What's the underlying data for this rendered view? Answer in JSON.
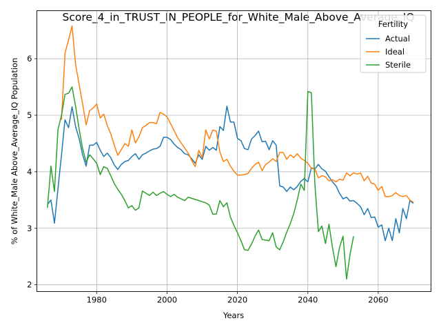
{
  "chart_data": {
    "type": "line",
    "title": "Score_4_in_TRUST_IN_PEOPLE_for_White_Male_Above_Average_IQ",
    "xlabel": "Years",
    "ylabel": "% of White_Male Above_Average_IQ Population",
    "xlim": [
      1963,
      2075
    ],
    "ylim": [
      1.88,
      6.85
    ],
    "xticks": [
      1980,
      2000,
      2020,
      2040,
      2060
    ],
    "yticks": [
      2,
      3,
      4,
      5,
      6
    ],
    "grid": true,
    "legend": {
      "title": "Fertility",
      "position": "top-right"
    },
    "series": [
      {
        "name": "Actual",
        "color": "#1f77b4",
        "x": [
          1966,
          1967,
          1968,
          1969,
          1970,
          1971,
          1972,
          1973,
          1974,
          1975,
          1976,
          1977,
          1978,
          1979,
          1980,
          1981,
          1982,
          1983,
          1984,
          1985,
          1986,
          1987,
          1988,
          1989,
          1990,
          1991,
          1992,
          1993,
          1994,
          1995,
          1996,
          1997,
          1998,
          1999,
          2000,
          2001,
          2002,
          2003,
          2004,
          2005,
          2006,
          2007,
          2008,
          2009,
          2010,
          2011,
          2012,
          2013,
          2014,
          2015,
          2016,
          2017,
          2018,
          2019,
          2020,
          2021,
          2022,
          2023,
          2024,
          2025,
          2026,
          2027,
          2028,
          2029,
          2030,
          2031,
          2032,
          2033,
          2034,
          2035,
          2036,
          2037,
          2038,
          2039,
          2040,
          2041,
          2042,
          2043,
          2044,
          2045,
          2046,
          2047,
          2048,
          2049,
          2050,
          2051,
          2052,
          2053,
          2054,
          2055,
          2056,
          2057,
          2058,
          2059,
          2060,
          2061,
          2062,
          2063,
          2064,
          2065,
          2066,
          2067,
          2068,
          2069,
          2070
        ],
        "y": [
          3.42,
          3.5,
          3.09,
          3.7,
          4.3,
          4.92,
          4.78,
          5.15,
          4.8,
          4.59,
          4.3,
          4.1,
          4.47,
          4.47,
          4.52,
          4.38,
          4.27,
          4.33,
          4.25,
          4.12,
          4.04,
          4.13,
          4.18,
          4.2,
          4.27,
          4.32,
          4.22,
          4.3,
          4.33,
          4.37,
          4.4,
          4.41,
          4.45,
          4.61,
          4.61,
          4.57,
          4.49,
          4.43,
          4.39,
          4.32,
          4.3,
          4.23,
          4.15,
          4.3,
          4.22,
          4.45,
          4.38,
          4.43,
          4.38,
          4.8,
          4.73,
          5.16,
          4.88,
          4.88,
          4.59,
          4.55,
          4.41,
          4.39,
          4.58,
          4.64,
          4.72,
          4.53,
          4.54,
          4.39,
          4.55,
          4.47,
          3.75,
          3.73,
          3.65,
          3.73,
          3.68,
          3.74,
          3.83,
          3.88,
          3.82,
          4.07,
          4.05,
          4.13,
          4.05,
          4.01,
          3.91,
          3.82,
          3.75,
          3.62,
          3.52,
          3.55,
          3.48,
          3.49,
          3.44,
          3.38,
          3.24,
          3.35,
          3.19,
          3.2,
          3.02,
          3.06,
          2.78,
          3.0,
          2.78,
          3.17,
          2.92,
          3.35,
          3.17,
          3.49,
          3.44
        ]
      },
      {
        "name": "Ideal",
        "color": "#ff7f0e",
        "x": [
          1970,
          1971,
          1972,
          1973,
          1974,
          1975,
          1976,
          1977,
          1978,
          1979,
          1980,
          1981,
          1982,
          1983,
          1984,
          1985,
          1986,
          1987,
          1988,
          1989,
          1990,
          1991,
          1992,
          1993,
          1994,
          1995,
          1996,
          1997,
          1998,
          1999,
          2000,
          2001,
          2002,
          2003,
          2004,
          2005,
          2006,
          2007,
          2008,
          2009,
          2010,
          2011,
          2012,
          2013,
          2014,
          2015,
          2016,
          2017,
          2018,
          2019,
          2020,
          2021,
          2022,
          2023,
          2024,
          2025,
          2026,
          2027,
          2028,
          2029,
          2030,
          2031,
          2032,
          2033,
          2034,
          2035,
          2036,
          2037,
          2038,
          2039,
          2040,
          2041,
          2042,
          2043,
          2044,
          2045,
          2046,
          2047,
          2048,
          2049,
          2050,
          2051,
          2052,
          2053,
          2054,
          2055,
          2056,
          2057,
          2058,
          2059,
          2060,
          2061,
          2062,
          2063,
          2064,
          2065,
          2066,
          2067,
          2068,
          2069,
          2070
        ],
        "y": [
          4.92,
          6.1,
          6.33,
          6.58,
          5.9,
          5.55,
          5.2,
          4.83,
          5.08,
          5.13,
          5.2,
          4.95,
          5.02,
          4.82,
          4.67,
          4.47,
          4.29,
          4.39,
          4.5,
          4.45,
          4.74,
          4.51,
          4.62,
          4.78,
          4.82,
          4.87,
          4.87,
          4.85,
          5.05,
          5.02,
          4.97,
          4.85,
          4.73,
          4.6,
          4.51,
          4.42,
          4.33,
          4.2,
          4.09,
          4.38,
          4.25,
          4.74,
          4.58,
          4.74,
          4.72,
          4.35,
          4.18,
          4.22,
          4.1,
          4.01,
          3.94,
          3.94,
          3.95,
          3.97,
          4.06,
          4.13,
          4.17,
          4.02,
          4.13,
          4.17,
          4.23,
          4.18,
          4.34,
          4.34,
          4.22,
          4.3,
          4.25,
          4.32,
          4.24,
          4.2,
          4.15,
          4.06,
          4.05,
          3.89,
          3.93,
          3.91,
          3.84,
          3.86,
          3.82,
          3.87,
          3.85,
          3.98,
          3.93,
          3.98,
          3.96,
          3.98,
          3.84,
          3.92,
          3.8,
          3.78,
          3.67,
          3.74,
          3.56,
          3.56,
          3.58,
          3.63,
          3.58,
          3.56,
          3.58,
          3.5,
          3.46
        ]
      },
      {
        "name": "Sterile",
        "color": "#2ca02c",
        "x": [
          1966,
          1967,
          1968,
          1969,
          1970,
          1971,
          1972,
          1973,
          1974,
          1975,
          1976,
          1977,
          1978,
          1979,
          1980,
          1981,
          1982,
          1983,
          1984,
          1985,
          1986,
          1987,
          1988,
          1989,
          1990,
          1991,
          1992,
          1993,
          1994,
          1995,
          1996,
          1997,
          1998,
          1999,
          2000,
          2001,
          2002,
          2003,
          2004,
          2005,
          2006,
          2007,
          2008,
          2009,
          2010,
          2011,
          2012,
          2013,
          2014,
          2015,
          2016,
          2017,
          2018,
          2019,
          2020,
          2021,
          2022,
          2023,
          2024,
          2025,
          2026,
          2027,
          2028,
          2029,
          2030,
          2031,
          2032,
          2033,
          2034,
          2035,
          2036,
          2037,
          2038,
          2039,
          2040,
          2041,
          2042,
          2043,
          2044,
          2045,
          2046,
          2047,
          2048,
          2049,
          2050,
          2051,
          2052,
          2053
        ],
        "y": [
          3.36,
          4.1,
          3.65,
          4.75,
          5.0,
          5.37,
          5.39,
          5.5,
          5.16,
          4.76,
          4.41,
          4.17,
          4.3,
          4.23,
          4.15,
          3.95,
          4.09,
          4.06,
          3.93,
          3.79,
          3.69,
          3.6,
          3.49,
          3.36,
          3.4,
          3.32,
          3.36,
          3.66,
          3.62,
          3.58,
          3.64,
          3.58,
          3.62,
          3.65,
          3.6,
          3.56,
          3.6,
          3.55,
          3.52,
          3.49,
          3.55,
          3.53,
          3.51,
          3.49,
          3.47,
          3.45,
          3.41,
          3.25,
          3.25,
          3.49,
          3.38,
          3.45,
          3.2,
          3.05,
          2.92,
          2.78,
          2.62,
          2.61,
          2.72,
          2.86,
          2.97,
          2.8,
          2.79,
          2.78,
          2.92,
          2.67,
          2.62,
          2.76,
          2.93,
          3.08,
          3.26,
          3.5,
          3.78,
          3.67,
          5.42,
          5.4,
          3.78,
          2.94,
          3.04,
          2.73,
          3.07,
          2.66,
          2.32,
          2.66,
          2.86,
          2.1,
          2.54,
          2.86
        ]
      }
    ]
  }
}
